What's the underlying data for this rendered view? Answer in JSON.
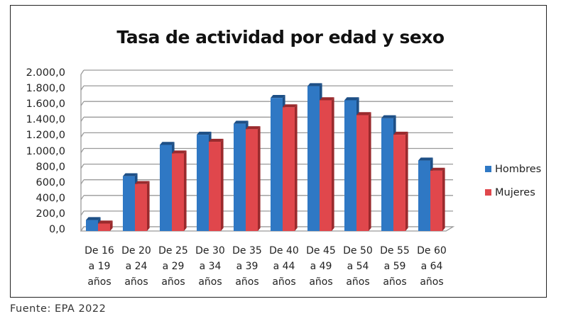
{
  "chart_data": {
    "type": "bar",
    "title": "Tasa de actividad por edad y sexo",
    "xlabel": "",
    "ylabel": "",
    "ylim": [
      0,
      2000
    ],
    "yticks": [
      "0,0",
      "200,0",
      "400,0",
      "600,0",
      "800,0",
      "1.000,0",
      "1.200,0",
      "1.400,0",
      "1.600,0",
      "1.800,0",
      "2.000,0"
    ],
    "categories": [
      [
        "De 16",
        "a 19",
        "años"
      ],
      [
        "De 20",
        "a 24",
        "años"
      ],
      [
        "De 25",
        "a 29",
        "años"
      ],
      [
        "De 30",
        "a 34",
        "años"
      ],
      [
        "De 35",
        "a 39",
        "años"
      ],
      [
        "De 40",
        "a 44",
        "años"
      ],
      [
        "De 45",
        "a 49",
        "años"
      ],
      [
        "De 50",
        "a 54",
        "años"
      ],
      [
        "De 55",
        "a 59",
        "años"
      ],
      [
        "De 60",
        "a 64",
        "años"
      ]
    ],
    "series": [
      {
        "name": "Hombres",
        "color": "#2f78c4",
        "side": "#1d4f86",
        "values": [
          140,
          700,
          1100,
          1230,
          1370,
          1700,
          1850,
          1670,
          1440,
          900
        ]
      },
      {
        "name": "Mujeres",
        "color": "#e0474c",
        "side": "#9a2a2d",
        "values": [
          95,
          600,
          990,
          1140,
          1300,
          1580,
          1670,
          1480,
          1230,
          770
        ]
      }
    ],
    "grid": true,
    "legend_position": "right",
    "style": "3d-column"
  },
  "source": "Fuente: EPA 2022"
}
